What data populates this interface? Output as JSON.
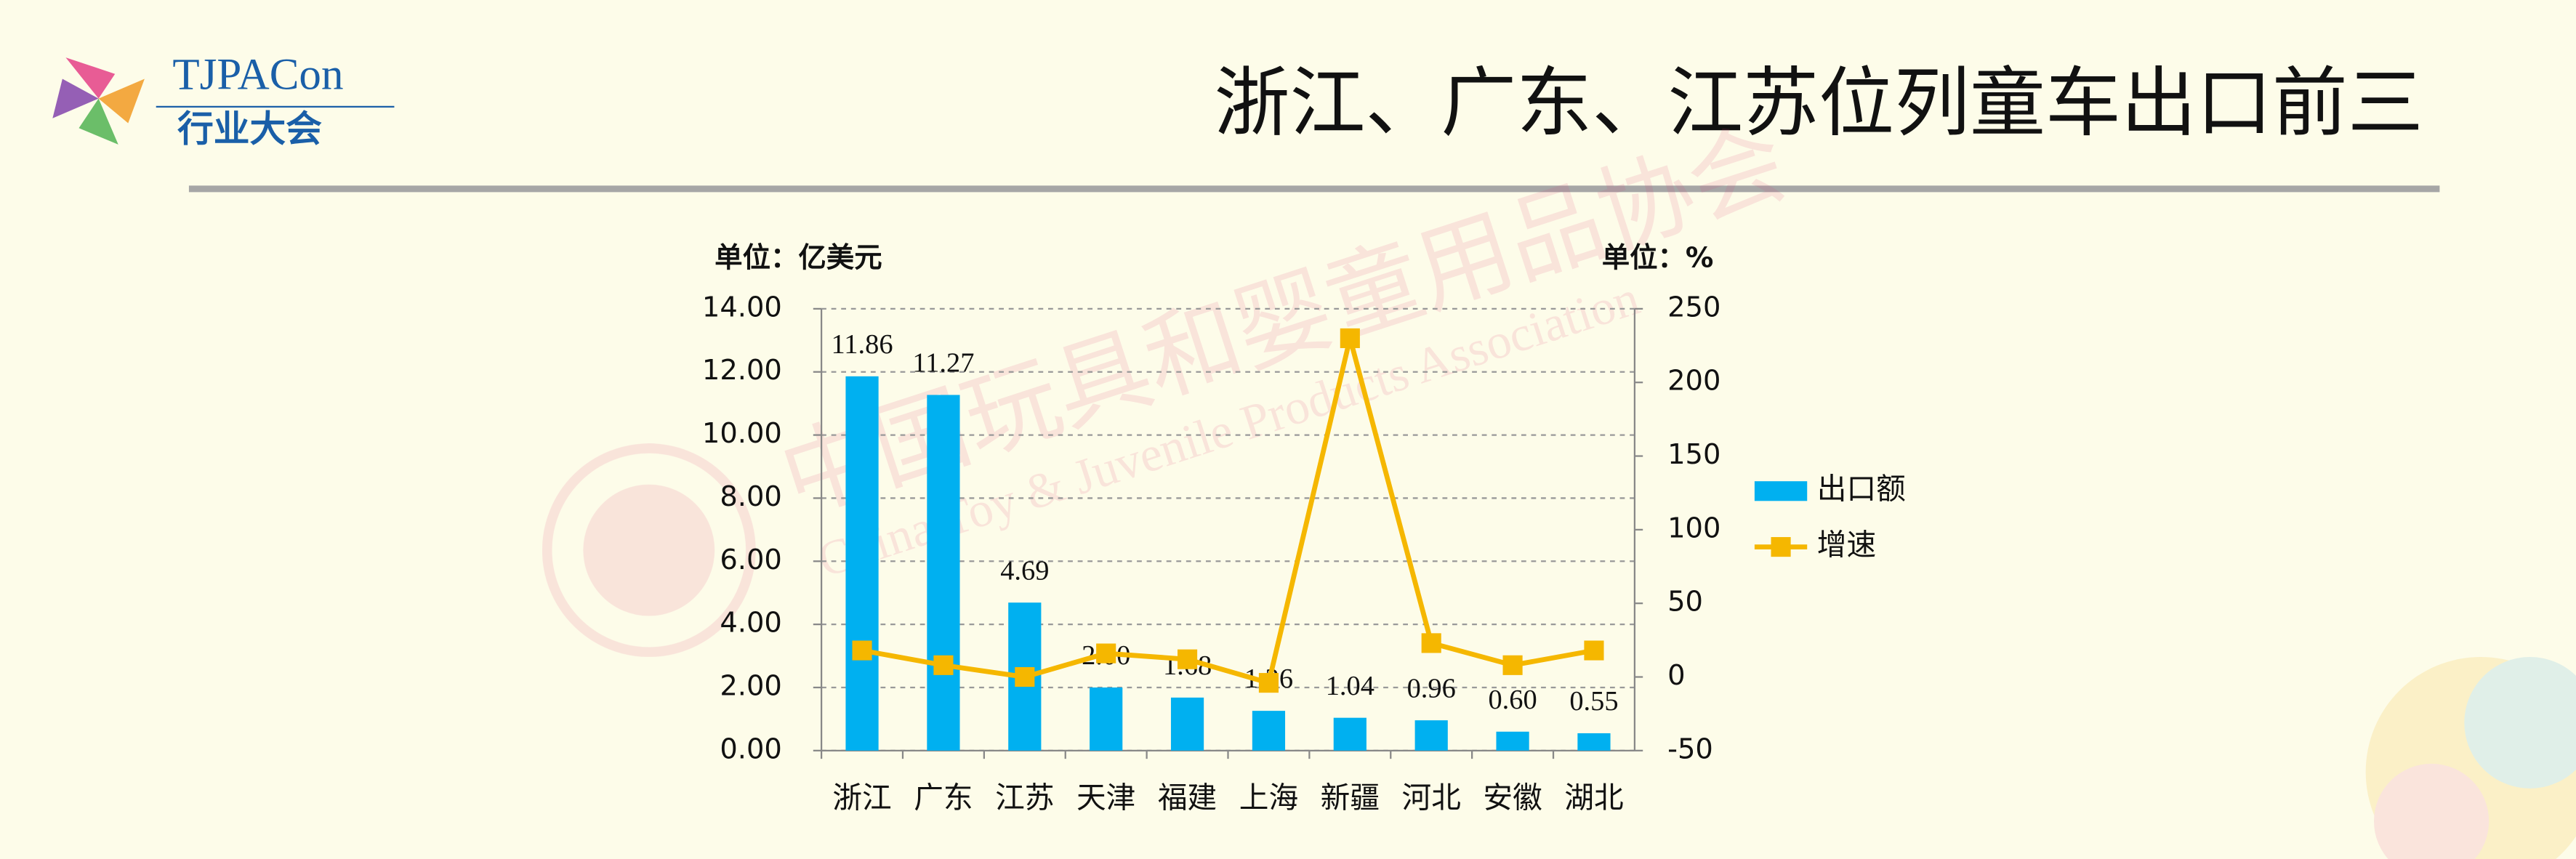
{
  "logo": {
    "name": "TJPACon",
    "subtitle": "行业大会"
  },
  "watermark": {
    "cn": "中国玩具和婴童用品协会",
    "en": "China Toy & Juvenile Products Association"
  },
  "chart_data": {
    "type": "bar",
    "title": "浙江、广东、江苏位列童车出口前三",
    "y_unit": "单位：亿美元",
    "y2_unit": "单位：%",
    "categories": [
      "浙江",
      "广东",
      "江苏",
      "天津",
      "福建",
      "上海",
      "新疆",
      "河北",
      "安徽",
      "湖北"
    ],
    "series": [
      {
        "name": "出口额",
        "type": "bar",
        "color": "#00b0f0",
        "values": [
          11.86,
          11.27,
          4.69,
          2.0,
          1.68,
          1.26,
          1.04,
          0.96,
          0.6,
          0.55
        ],
        "value_labels": [
          "11.86",
          "11.27",
          "4.69",
          "2.00",
          "1.68",
          "1.26",
          "1.04",
          "0.96",
          "0.60",
          "0.55"
        ]
      },
      {
        "name": "增速",
        "type": "line",
        "axis": "y2",
        "color": "#f5b700",
        "values": [
          18,
          8,
          0,
          16,
          12,
          -4,
          230,
          23,
          8,
          18
        ]
      }
    ],
    "ylim": [
      0,
      14
    ],
    "yticks": [
      {
        "value": 0,
        "label": "0.00"
      },
      {
        "value": 2,
        "label": "2.00"
      },
      {
        "value": 4,
        "label": "4.00"
      },
      {
        "value": 6,
        "label": "6.00"
      },
      {
        "value": 8,
        "label": "8.00"
      },
      {
        "value": 10,
        "label": "10.00"
      },
      {
        "value": 12,
        "label": "12.00"
      },
      {
        "value": 14,
        "label": "14.00"
      }
    ],
    "y2lim": [
      -50,
      250
    ],
    "y2ticks": [
      -50,
      0,
      50,
      100,
      150,
      200,
      250
    ],
    "grid": true,
    "legend": "right"
  }
}
